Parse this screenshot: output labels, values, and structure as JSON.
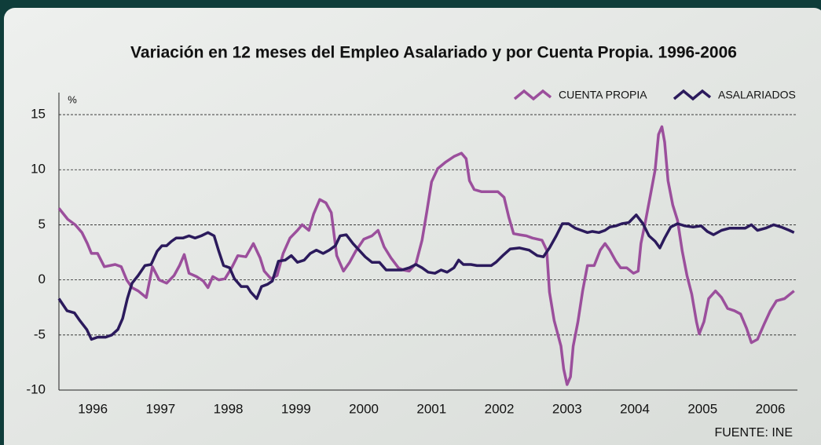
{
  "chart_data": {
    "type": "line",
    "title": "Variación en 12 meses del Empleo Asalariado y por Cuenta Propia. 1996-2006",
    "y_unit": "%",
    "source": "FUENTE: INE",
    "xlim": [
      1996,
      2006.9
    ],
    "xticks": [
      {
        "value": 1996.5,
        "label": "1996"
      },
      {
        "value": 1997.5,
        "label": "1997"
      },
      {
        "value": 1998.5,
        "label": "1998"
      },
      {
        "value": 1999.5,
        "label": "1999"
      },
      {
        "value": 2000.5,
        "label": "2000"
      },
      {
        "value": 2001.5,
        "label": "2001"
      },
      {
        "value": 2002.5,
        "label": "2002"
      },
      {
        "value": 2003.5,
        "label": "2003"
      },
      {
        "value": 2004.5,
        "label": "2004"
      },
      {
        "value": 2005.5,
        "label": "2005"
      },
      {
        "value": 2006.5,
        "label": "2006"
      }
    ],
    "ylim": [
      -10,
      17
    ],
    "yticks": [
      15,
      10,
      5,
      0,
      -5,
      -10
    ],
    "grid": true,
    "legend": "top-right",
    "series": [
      {
        "name": "CUENTA PROPIA",
        "color": "#9b4f9c",
        "x": [
          1996.0,
          1996.13,
          1996.24,
          1996.34,
          1996.42,
          1996.48,
          1996.57,
          1996.67,
          1996.83,
          1996.92,
          1997.0,
          1997.08,
          1997.17,
          1997.29,
          1997.38,
          1997.48,
          1997.59,
          1997.7,
          1997.78,
          1997.85,
          1997.92,
          1998.03,
          1998.13,
          1998.2,
          1998.27,
          1998.36,
          1998.45,
          1998.55,
          1998.64,
          1998.76,
          1998.87,
          1998.97,
          1999.03,
          1999.13,
          1999.22,
          1999.31,
          1999.41,
          1999.52,
          1999.59,
          1999.69,
          1999.76,
          1999.85,
          1999.94,
          2000.02,
          2000.1,
          2000.2,
          2000.29,
          2000.38,
          2000.5,
          2000.62,
          2000.71,
          2000.8,
          2000.9,
          2001.01,
          2001.08,
          2001.17,
          2001.27,
          2001.36,
          2001.43,
          2001.5,
          2001.59,
          2001.71,
          2001.83,
          2001.94,
          2002.01,
          2002.06,
          2002.13,
          2002.24,
          2002.36,
          2002.48,
          2002.57,
          2002.64,
          2002.71,
          2002.8,
          2002.9,
          2002.99,
          2003.13,
          2003.2,
          2003.24,
          2003.31,
          2003.41,
          2003.45,
          2003.5,
          2003.55,
          2003.59,
          2003.66,
          2003.73,
          2003.8,
          2003.9,
          2003.99,
          2004.06,
          2004.13,
          2004.22,
          2004.29,
          2004.38,
          2004.48,
          2004.55,
          2004.59,
          2004.66,
          2004.73,
          2004.8,
          2004.85,
          2004.9,
          2004.94,
          2004.99,
          2005.06,
          2005.13,
          2005.2,
          2005.27,
          2005.34,
          2005.41,
          2005.45,
          2005.52,
          2005.59,
          2005.69,
          2005.78,
          2005.87,
          2005.97,
          2006.06,
          2006.15,
          2006.22,
          2006.31,
          2006.41,
          2006.5,
          2006.59,
          2006.71,
          2006.85
        ],
        "values": [
          6.5,
          5.5,
          5.0,
          4.3,
          3.3,
          2.4,
          2.4,
          1.2,
          1.4,
          1.2,
          0,
          -0.7,
          -1,
          -1.6,
          1.2,
          0,
          -0.3,
          0.4,
          1.3,
          2.3,
          0.6,
          0.3,
          -0.1,
          -0.7,
          0.3,
          0,
          0.1,
          1.1,
          2.2,
          2.1,
          3.3,
          2,
          0.8,
          0.1,
          0.4,
          2.4,
          3.8,
          4.5,
          5,
          4.5,
          6,
          7.3,
          7,
          6.1,
          2.2,
          0.8,
          1.6,
          2.6,
          3.7,
          4,
          4.5,
          3,
          2,
          1.1,
          0.9,
          0.8,
          1.5,
          3.6,
          6.2,
          8.9,
          10.1,
          10.7,
          11.2,
          11.5,
          11,
          9,
          8.2,
          8,
          8,
          8,
          7.5,
          5.7,
          4.2,
          4.1,
          4,
          3.8,
          3.6,
          2.7,
          -1.1,
          -3.7,
          -6,
          -8.1,
          -9.5,
          -8.8,
          -6,
          -3.8,
          -1,
          1.3,
          1.3,
          2.7,
          3.3,
          2.7,
          1.7,
          1.1,
          1.1,
          0.6,
          0.8,
          3.3,
          5.4,
          7.7,
          10,
          13.2,
          13.9,
          12.5,
          9,
          6.8,
          5.4,
          2.6,
          0.4,
          -1.3,
          -3.8,
          -4.9,
          -3.8,
          -1.7,
          -1,
          -1.6,
          -2.6,
          -2.8,
          -3.1,
          -4.4,
          -5.7,
          -5.4,
          -4,
          -2.8,
          -1.9,
          -1.7,
          -1
        ]
      },
      {
        "name": "ASALARIADOS",
        "color": "#2b1a5c",
        "x": [
          1996.0,
          1996.12,
          1996.23,
          1996.31,
          1996.41,
          1996.48,
          1996.57,
          1996.69,
          1996.78,
          1996.87,
          1996.94,
          1997.01,
          1997.08,
          1997.17,
          1997.27,
          1997.36,
          1997.45,
          1997.52,
          1997.59,
          1997.66,
          1997.73,
          1997.83,
          1997.92,
          1998.01,
          1998.1,
          1998.2,
          1998.29,
          1998.36,
          1998.43,
          1998.52,
          1998.59,
          1998.69,
          1998.78,
          1998.83,
          1998.92,
          1998.99,
          1999.08,
          1999.15,
          1999.24,
          1999.34,
          1999.43,
          1999.52,
          1999.62,
          1999.71,
          1999.8,
          1999.9,
          1999.99,
          2000.08,
          2000.15,
          2000.24,
          2000.34,
          2000.43,
          2000.52,
          2000.62,
          2000.73,
          2000.83,
          2000.94,
          2001.06,
          2001.17,
          2001.27,
          2001.36,
          2001.45,
          2001.55,
          2001.64,
          2001.73,
          2001.83,
          2001.9,
          2001.97,
          2002.08,
          2002.17,
          2002.29,
          2002.38,
          2002.45,
          2002.55,
          2002.66,
          2002.8,
          2002.94,
          2003.06,
          2003.15,
          2003.24,
          2003.34,
          2003.43,
          2003.52,
          2003.62,
          2003.71,
          2003.8,
          2003.87,
          2003.97,
          2004.06,
          2004.13,
          2004.22,
          2004.31,
          2004.41,
          2004.52,
          2004.62,
          2004.71,
          2004.8,
          2004.87,
          2004.94,
          2005.03,
          2005.13,
          2005.24,
          2005.36,
          2005.48,
          2005.57,
          2005.66,
          2005.78,
          2005.9,
          2006.03,
          2006.13,
          2006.22,
          2006.31,
          2006.43,
          2006.55,
          2006.66,
          2006.78,
          2006.85
        ],
        "values": [
          -1.7,
          -2.8,
          -3,
          -3.7,
          -4.5,
          -5.4,
          -5.2,
          -5.2,
          -5,
          -4.5,
          -3.5,
          -1.7,
          -0.3,
          0.4,
          1.3,
          1.4,
          2.6,
          3.1,
          3.1,
          3.5,
          3.8,
          3.8,
          4,
          3.8,
          4,
          4.3,
          4,
          2.6,
          1.3,
          1.1,
          0.1,
          -0.6,
          -0.6,
          -1.1,
          -1.7,
          -0.6,
          -0.4,
          -0.1,
          1.7,
          1.8,
          2.2,
          1.6,
          1.8,
          2.4,
          2.7,
          2.4,
          2.7,
          3.1,
          4,
          4.1,
          3.3,
          2.7,
          2.1,
          1.6,
          1.6,
          0.9,
          0.9,
          0.9,
          1.1,
          1.4,
          1.1,
          0.7,
          0.6,
          0.9,
          0.7,
          1.1,
          1.8,
          1.4,
          1.4,
          1.3,
          1.3,
          1.3,
          1.6,
          2.2,
          2.8,
          2.9,
          2.7,
          2.2,
          2.1,
          2.9,
          4,
          5.1,
          5.1,
          4.7,
          4.5,
          4.3,
          4.4,
          4.3,
          4.5,
          4.8,
          4.9,
          5.1,
          5.2,
          5.9,
          5.1,
          4,
          3.5,
          2.9,
          3.8,
          4.8,
          5.1,
          4.9,
          4.8,
          4.9,
          4.4,
          4.1,
          4.5,
          4.7,
          4.7,
          4.7,
          5,
          4.5,
          4.7,
          5,
          4.8,
          4.5,
          4.3
        ]
      }
    ]
  }
}
